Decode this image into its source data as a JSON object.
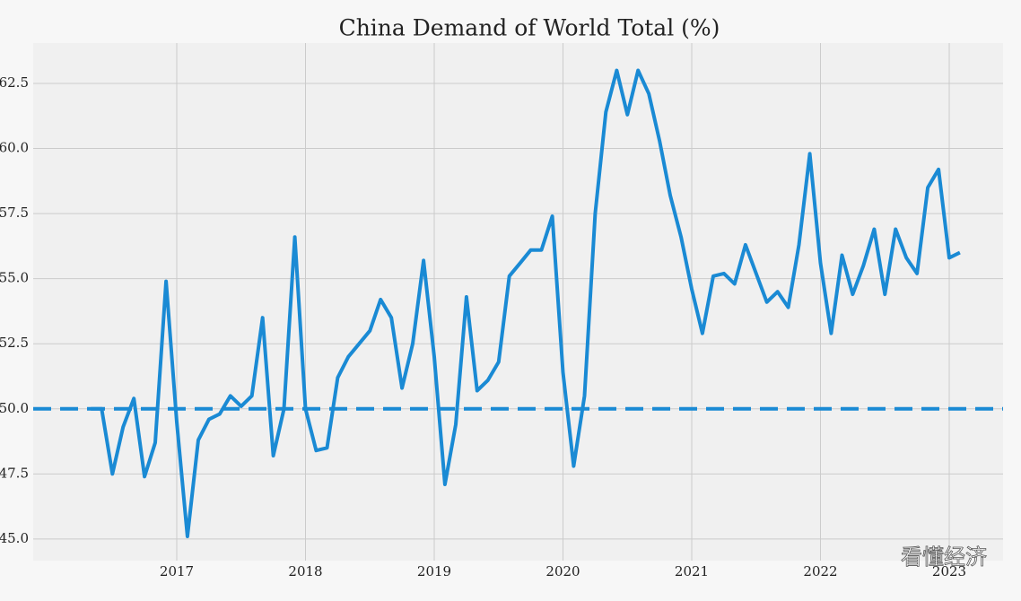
{
  "chart_data": {
    "type": "line",
    "title": "China Demand of World Total (%)",
    "x": [
      2016.333,
      2016.417,
      2016.5,
      2016.583,
      2016.667,
      2016.75,
      2016.833,
      2016.917,
      2017,
      2017.083,
      2017.167,
      2017.25,
      2017.333,
      2017.417,
      2017.5,
      2017.583,
      2017.667,
      2017.75,
      2017.833,
      2017.917,
      2018,
      2018.083,
      2018.167,
      2018.25,
      2018.333,
      2018.417,
      2018.5,
      2018.583,
      2018.667,
      2018.75,
      2018.833,
      2018.917,
      2019,
      2019.083,
      2019.167,
      2019.25,
      2019.333,
      2019.417,
      2019.5,
      2019.583,
      2019.667,
      2019.75,
      2019.833,
      2019.917,
      2020,
      2020.083,
      2020.167,
      2020.25,
      2020.333,
      2020.417,
      2020.5,
      2020.583,
      2020.667,
      2020.75,
      2020.833,
      2020.917,
      2021,
      2021.083,
      2021.167,
      2021.25,
      2021.333,
      2021.417,
      2021.5,
      2021.583,
      2021.667,
      2021.75,
      2021.833,
      2021.917,
      2022,
      2022.083,
      2022.167,
      2022.25,
      2022.333,
      2022.417,
      2022.5,
      2022.583,
      2022.667,
      2022.75,
      2022.833,
      2022.917,
      2023,
      2023.083
    ],
    "values": [
      50.0,
      50.0,
      47.5,
      49.3,
      50.4,
      47.4,
      48.7,
      54.9,
      49.5,
      45.1,
      48.8,
      49.6,
      49.8,
      50.5,
      50.1,
      50.5,
      53.5,
      48.2,
      50.0,
      56.6,
      50.0,
      48.4,
      48.5,
      51.2,
      52.0,
      52.5,
      53.0,
      54.2,
      53.5,
      50.8,
      52.5,
      55.7,
      52.0,
      47.1,
      49.4,
      54.3,
      50.7,
      51.1,
      51.8,
      55.1,
      55.6,
      56.1,
      56.1,
      57.4,
      51.4,
      47.8,
      50.5,
      57.5,
      61.4,
      63.0,
      61.3,
      63.0,
      62.1,
      60.3,
      58.2,
      56.6,
      54.6,
      52.9,
      55.1,
      55.2,
      54.8,
      56.3,
      55.2,
      54.1,
      54.5,
      53.9,
      56.3,
      59.8,
      55.6,
      52.9,
      55.9,
      54.4,
      55.5,
      56.9,
      54.4,
      56.9,
      55.8,
      55.2,
      58.5,
      59.2,
      55.8,
      56.0
    ],
    "color": "#1a8ad4",
    "hline": 50,
    "xlim": [
      2015.885,
      2023.418
    ],
    "xticks": [
      2017,
      2018,
      2019,
      2020,
      2021,
      2022,
      2023
    ],
    "ylim": [
      44.17,
      64.05
    ],
    "yticks": [
      {
        "value": 45,
        "label": "45.0"
      },
      47.5,
      {
        "value": 50,
        "label": "50.0"
      },
      52.5,
      {
        "value": 55,
        "label": "55.0"
      },
      57.5,
      {
        "value": 60,
        "label": "60.0"
      },
      62.5
    ],
    "grid": true,
    "watermark": "看懂经济"
  }
}
